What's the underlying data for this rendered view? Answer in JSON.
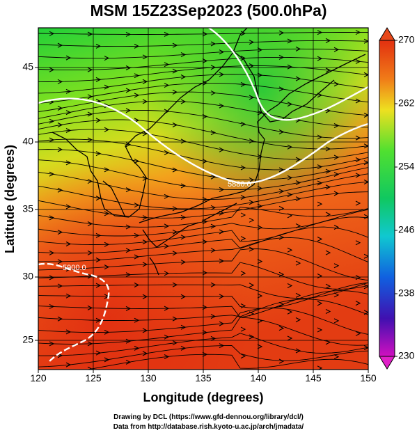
{
  "title": "MSM 15Z23Sep2023 (500.0hPa)",
  "axes": {
    "xlabel": "Longitude (degrees)",
    "ylabel": "Latitude  (degrees)",
    "x_ticks": [
      "120",
      "125",
      "130",
      "135",
      "140",
      "145",
      "150"
    ],
    "y_ticks": [
      "25",
      "30",
      "35",
      "40",
      "45"
    ]
  },
  "colorbar": {
    "labels": [
      "270",
      "262",
      "254",
      "246",
      "238",
      "230"
    ],
    "min": 230,
    "max": 270
  },
  "contour_labels": {
    "northern": "5880.0",
    "southern": "5900.0"
  },
  "credits": {
    "line1": "Drawing by DCL (https://www.gfd-dennou.org/library/dcl/)",
    "line2": "Data from http://database.rish.kyoto-u.ac.jp/arch/jmadata/"
  },
  "colors": {
    "warm": "#e8481a",
    "mid": "#f0a020",
    "cool": "#30d03a",
    "contour": "#ffffff"
  }
}
